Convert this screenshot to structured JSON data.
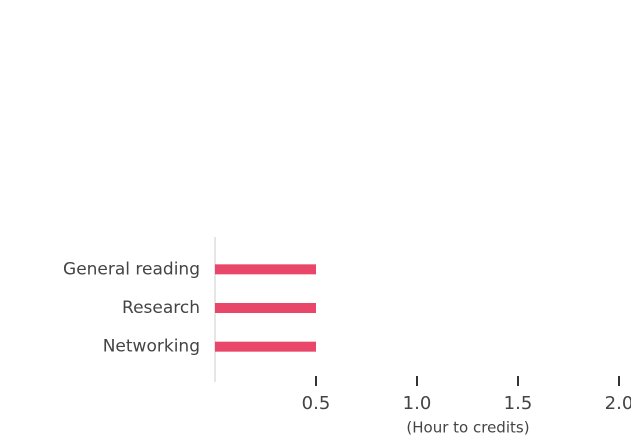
{
  "chart_data": {
    "type": "barh",
    "categories": [
      "General reading",
      "Research",
      "Networking"
    ],
    "values": [
      0.5,
      0.5,
      0.5
    ],
    "color": "#e8476a",
    "xlabel": "(Hour to credits)",
    "xlim": [
      0,
      2
    ],
    "xticks": [
      0.5,
      {
        "value": 1,
        "label": "1.0"
      },
      1.5,
      {
        "value": 2,
        "label": "2.0"
      }
    ],
    "grid": false
  }
}
